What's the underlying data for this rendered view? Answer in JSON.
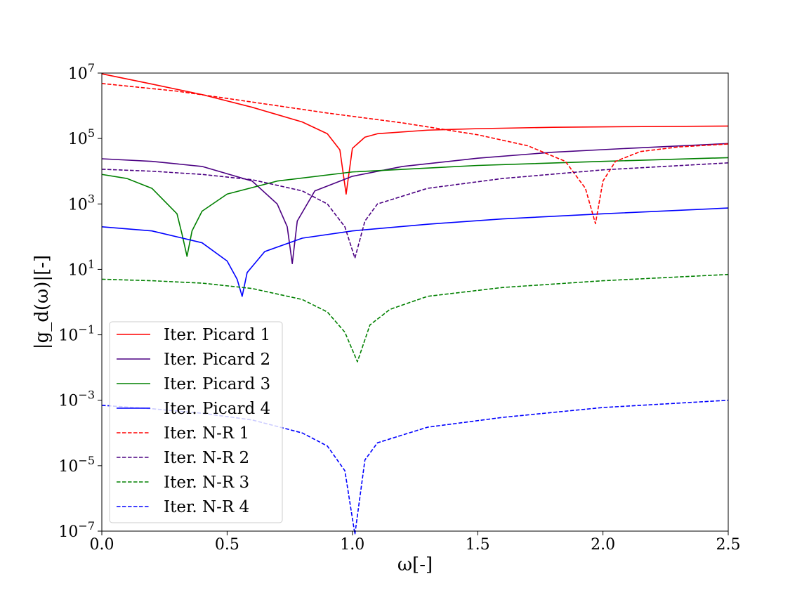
{
  "chart_data": {
    "type": "line",
    "xlabel": "ω[-]",
    "ylabel": "|g_d(ω)|[-]",
    "xlim": [
      0.0,
      2.5
    ],
    "ylim": [
      1e-07,
      10000000.0
    ],
    "yscale": "log",
    "grid": false,
    "legend_placement": "lower-left",
    "x_ticks": [
      "0.0",
      "0.5",
      "1.0",
      "1.5",
      "2.0",
      "2.5"
    ],
    "y_ticks": [
      {
        "mantissa": "10",
        "exponent": "7"
      },
      {
        "mantissa": "10",
        "exponent": "5"
      },
      {
        "mantissa": "10",
        "exponent": "3"
      },
      {
        "mantissa": "10",
        "exponent": "1"
      },
      {
        "mantissa": "10",
        "exponent": "−1"
      },
      {
        "mantissa": "10",
        "exponent": "−3"
      },
      {
        "mantissa": "10",
        "exponent": "−5"
      },
      {
        "mantissa": "10",
        "exponent": "−7"
      }
    ],
    "series": [
      {
        "name": "Iter. Picard 1",
        "color": "#ff0000",
        "style": "solid",
        "x": [
          0.0,
          0.2,
          0.4,
          0.6,
          0.8,
          0.9,
          0.95,
          0.975,
          1.0,
          1.05,
          1.1,
          1.3,
          1.5,
          1.8,
          2.1,
          2.5
        ],
        "y": [
          9500000.0,
          4600000.0,
          2200000.0,
          900000.0,
          320000.0,
          140000.0,
          45000.0,
          2000.0,
          50000.0,
          110000.0,
          140000.0,
          180000.0,
          200000.0,
          220000.0,
          230000.0,
          240000.0
        ]
      },
      {
        "name": "Iter. Picard 2",
        "color": "#4b0082",
        "style": "solid",
        "x": [
          0.0,
          0.2,
          0.4,
          0.6,
          0.7,
          0.74,
          0.76,
          0.78,
          0.85,
          1.0,
          1.2,
          1.5,
          1.8,
          2.1,
          2.5
        ],
        "y": [
          24000.0,
          20000.0,
          14000.0,
          5000.0,
          1000.0,
          200.0,
          15,
          300.0,
          2500.0,
          7000.0,
          14000.0,
          25000.0,
          38000.0,
          50000.0,
          70000.0
        ]
      },
      {
        "name": "Iter. Picard 3",
        "color": "#008000",
        "style": "solid",
        "x": [
          0.0,
          0.1,
          0.2,
          0.3,
          0.32,
          0.34,
          0.36,
          0.4,
          0.5,
          0.7,
          1.0,
          1.5,
          2.0,
          2.5
        ],
        "y": [
          8000.0,
          6000.0,
          3000.0,
          500.0,
          120.0,
          25,
          150.0,
          600.0,
          2000.0,
          5000.0,
          9500.0,
          15000.0,
          20000.0,
          26000.0
        ]
      },
      {
        "name": "Iter. Picard 4",
        "color": "#0000ff",
        "style": "solid",
        "x": [
          0.0,
          0.2,
          0.4,
          0.5,
          0.54,
          0.56,
          0.58,
          0.65,
          0.8,
          1.0,
          1.3,
          1.6,
          2.0,
          2.5
        ],
        "y": [
          200.0,
          150.0,
          65,
          18,
          5,
          1.5,
          8,
          35,
          90,
          150.0,
          240.0,
          350.0,
          500.0,
          750.0
        ]
      },
      {
        "name": "Iter. N-R 1",
        "color": "#ff0000",
        "style": "dashed",
        "x": [
          0.0,
          0.3,
          0.6,
          0.9,
          1.2,
          1.5,
          1.7,
          1.85,
          1.93,
          1.97,
          2.0,
          2.05,
          2.15,
          2.3,
          2.5
        ],
        "y": [
          4800000.0,
          2800000.0,
          1300000.0,
          600000.0,
          300000.0,
          130000.0,
          60000.0,
          20000.0,
          3000.0,
          250.0,
          5000.0,
          20000.0,
          40000.0,
          55000.0,
          68000.0
        ]
      },
      {
        "name": "Iter. N-R 2",
        "color": "#4b0082",
        "style": "dashed",
        "x": [
          0.0,
          0.2,
          0.4,
          0.6,
          0.8,
          0.9,
          0.97,
          1.01,
          1.05,
          1.1,
          1.3,
          1.6,
          2.0,
          2.5
        ],
        "y": [
          11500.0,
          10000.0,
          8000.0,
          5500.0,
          2500.0,
          1000.0,
          200.0,
          22,
          300.0,
          1000.0,
          3000.0,
          6000.0,
          11000.0,
          18000.0
        ]
      },
      {
        "name": "Iter. N-R 3",
        "color": "#008000",
        "style": "dashed",
        "x": [
          0.0,
          0.2,
          0.4,
          0.6,
          0.8,
          0.9,
          0.97,
          1.02,
          1.07,
          1.15,
          1.3,
          1.6,
          2.0,
          2.5
        ],
        "y": [
          5.0,
          4.5,
          3.8,
          2.6,
          1.2,
          0.5,
          0.12,
          0.015,
          0.2,
          0.6,
          1.5,
          2.8,
          4.5,
          7.0
        ]
      },
      {
        "name": "Iter. N-R 4",
        "color": "#0000ff",
        "style": "dashed",
        "x": [
          0.0,
          0.2,
          0.4,
          0.6,
          0.8,
          0.9,
          0.97,
          1.01,
          1.05,
          1.1,
          1.3,
          1.6,
          2.0,
          2.5
        ],
        "y": [
          0.0007,
          0.00055,
          0.0004,
          0.00025,
          0.0001,
          4e-05,
          7e-06,
          8e-08,
          1.5e-05,
          5e-05,
          0.00015,
          0.0003,
          0.0006,
          0.001
        ]
      }
    ]
  }
}
